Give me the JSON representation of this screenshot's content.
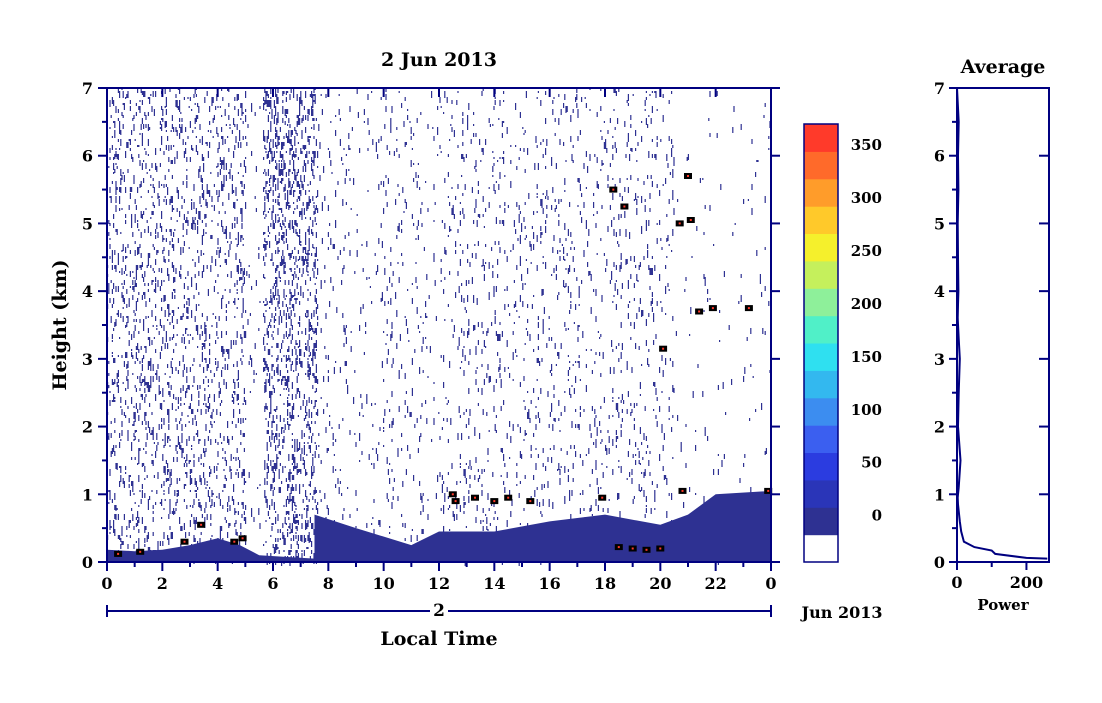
{
  "chart_data": [
    {
      "type": "heatmap",
      "title": "2 Jun 2013",
      "xlabel": "Local Time",
      "ylabel": "Height (km)",
      "x_ticks": [
        "0",
        "2",
        "4",
        "6",
        "8",
        "10",
        "12",
        "14",
        "16",
        "18",
        "20",
        "22",
        "0"
      ],
      "y_ticks": [
        "0",
        "1",
        "2",
        "3",
        "4",
        "5",
        "6",
        "7"
      ],
      "xlim": [
        0,
        24
      ],
      "ylim": [
        0,
        7
      ],
      "date_axis": {
        "day_label": "2",
        "month_label": "Jun 2013"
      },
      "colorbar": {
        "ticks": [
          "0",
          "50",
          "100",
          "150",
          "200",
          "250",
          "300",
          "350"
        ],
        "range": [
          0,
          380
        ],
        "colors": [
          "#ffffff",
          "#2e3192",
          "#2a35b8",
          "#2b3ce0",
          "#3b5ff0",
          "#3c8df0",
          "#33b8ef",
          "#2fe0f0",
          "#50f0c8",
          "#8ef09a",
          "#c5f05c",
          "#f5f02c",
          "#ffc92a",
          "#ff9c2a",
          "#ff6a2a",
          "#ff3a2a"
        ]
      },
      "features": {
        "noise_color": "#2e3192",
        "boundary_layer": [
          {
            "t": 0,
            "h": 0.18
          },
          {
            "t": 1,
            "h": 0.16
          },
          {
            "t": 2,
            "h": 0.18
          },
          {
            "t": 3,
            "h": 0.25
          },
          {
            "t": 4,
            "h": 0.35
          },
          {
            "t": 4.8,
            "h": 0.25
          },
          {
            "t": 5.5,
            "h": 0.1
          },
          {
            "t": 7.5,
            "h": 0.05
          },
          {
            "t": 7.5,
            "h": 0.7
          },
          {
            "t": 9,
            "h": 0.5
          },
          {
            "t": 11,
            "h": 0.25
          },
          {
            "t": 12,
            "h": 0.45
          },
          {
            "t": 14,
            "h": 0.45
          },
          {
            "t": 16,
            "h": 0.6
          },
          {
            "t": 18,
            "h": 0.7
          },
          {
            "t": 20,
            "h": 0.55
          },
          {
            "t": 21,
            "h": 0.7
          },
          {
            "t": 22,
            "h": 1.0
          },
          {
            "t": 24,
            "h": 1.05
          }
        ],
        "cloud_points": [
          {
            "t": 18.3,
            "h": 5.5
          },
          {
            "t": 18.7,
            "h": 5.25
          },
          {
            "t": 20.7,
            "h": 5.0
          },
          {
            "t": 21.1,
            "h": 5.05
          },
          {
            "t": 21.0,
            "h": 5.7
          },
          {
            "t": 21.4,
            "h": 3.7
          },
          {
            "t": 21.9,
            "h": 3.75
          },
          {
            "t": 23.2,
            "h": 3.75
          },
          {
            "t": 20.1,
            "h": 3.15
          },
          {
            "t": 12.5,
            "h": 1.0
          },
          {
            "t": 12.6,
            "h": 0.9
          },
          {
            "t": 13.3,
            "h": 0.95
          },
          {
            "t": 14.0,
            "h": 0.9
          },
          {
            "t": 14.5,
            "h": 0.95
          },
          {
            "t": 15.3,
            "h": 0.9
          },
          {
            "t": 23.9,
            "h": 1.05
          },
          {
            "t": 20.8,
            "h": 1.05
          },
          {
            "t": 17.9,
            "h": 0.95
          },
          {
            "t": 19.0,
            "h": 0.2
          },
          {
            "t": 19.5,
            "h": 0.18
          },
          {
            "t": 20.0,
            "h": 0.2
          },
          {
            "t": 18.5,
            "h": 0.22
          },
          {
            "t": 4.6,
            "h": 0.3
          },
          {
            "t": 4.9,
            "h": 0.35
          },
          {
            "t": 3.4,
            "h": 0.55
          },
          {
            "t": 2.8,
            "h": 0.3
          },
          {
            "t": 1.2,
            "h": 0.15
          },
          {
            "t": 0.4,
            "h": 0.12
          }
        ]
      }
    },
    {
      "type": "line",
      "title": "Average",
      "xlabel": "Power",
      "x_ticks": [
        "0",
        "200"
      ],
      "y_ticks": [
        "0",
        "1",
        "2",
        "3",
        "4",
        "5",
        "6",
        "7"
      ],
      "xlim": [
        0,
        265
      ],
      "ylim": [
        0,
        7
      ],
      "series": [
        {
          "x": [
            0,
            5,
            3,
            4,
            2,
            3,
            4,
            3,
            2,
            5,
            8,
            5,
            3,
            10,
            5,
            3,
            2,
            3,
            8,
            12,
            20,
            50,
            100,
            110,
            200,
            260
          ],
          "y": [
            7,
            6.5,
            6,
            5.5,
            5,
            4.5,
            4.0,
            3.8,
            3.6,
            3.3,
            3.0,
            2.5,
            2.0,
            1.5,
            1.1,
            1.0,
            0.95,
            0.85,
            0.6,
            0.45,
            0.3,
            0.22,
            0.17,
            0.12,
            0.06,
            0.05
          ]
        }
      ]
    }
  ]
}
